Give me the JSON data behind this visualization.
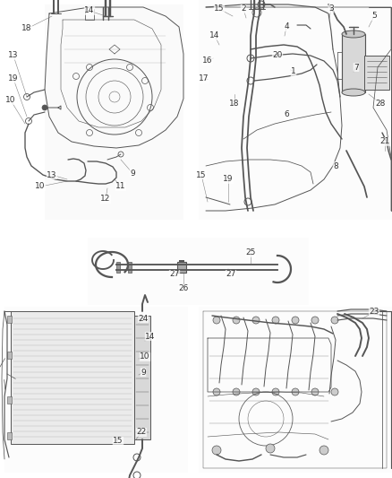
{
  "background_color": "#ffffff",
  "line_color": "#555555",
  "text_color": "#333333",
  "fig_width": 4.38,
  "fig_height": 5.33,
  "dpi": 100,
  "label_fontsize": 6.5,
  "labels_tl": [
    [
      "14",
      100,
      12
    ],
    [
      "18",
      30,
      32
    ],
    [
      "13",
      15,
      62
    ],
    [
      "19",
      15,
      88
    ],
    [
      "10",
      12,
      112
    ],
    [
      "13",
      58,
      195
    ],
    [
      "10",
      45,
      208
    ],
    [
      "9",
      148,
      193
    ],
    [
      "11",
      135,
      208
    ],
    [
      "12",
      118,
      222
    ]
  ],
  "labels_tr": [
    [
      "15",
      245,
      10
    ],
    [
      "2",
      272,
      10
    ],
    [
      "3",
      370,
      10
    ],
    [
      "5",
      418,
      18
    ],
    [
      "14",
      240,
      40
    ],
    [
      "4",
      320,
      30
    ],
    [
      "16",
      232,
      68
    ],
    [
      "20",
      310,
      62
    ],
    [
      "1",
      328,
      80
    ],
    [
      "7",
      398,
      75
    ],
    [
      "17",
      228,
      88
    ],
    [
      "18",
      262,
      115
    ],
    [
      "6",
      320,
      128
    ],
    [
      "28",
      425,
      115
    ],
    [
      "15",
      225,
      195
    ],
    [
      "19",
      255,
      200
    ],
    [
      "8",
      375,
      185
    ],
    [
      "21",
      430,
      158
    ]
  ],
  "labels_mid": [
    [
      "25",
      280,
      282
    ],
    [
      "27",
      195,
      306
    ],
    [
      "27",
      258,
      306
    ],
    [
      "26",
      205,
      322
    ]
  ],
  "labels_bl": [
    [
      "24",
      160,
      355
    ],
    [
      "14",
      168,
      375
    ],
    [
      "10",
      162,
      398
    ],
    [
      "9",
      160,
      415
    ],
    [
      "22",
      158,
      482
    ],
    [
      "15",
      132,
      492
    ]
  ],
  "labels_br": [
    [
      "23",
      418,
      348
    ]
  ]
}
